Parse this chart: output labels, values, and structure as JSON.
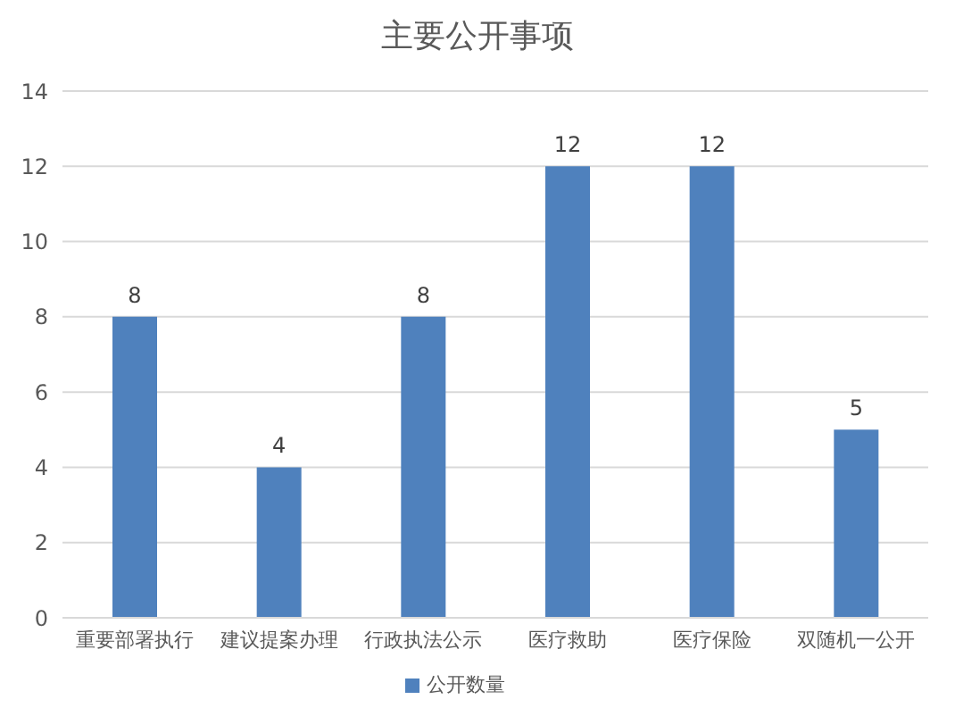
{
  "chart_data": {
    "type": "bar",
    "title": "主要公开事项",
    "categories": [
      "重要部署执行",
      "建议提案办理",
      "行政执法公示",
      "医疗救助",
      "医疗保险",
      "双随机一公开"
    ],
    "series": [
      {
        "name": "公开数量",
        "color": "#4f81bd",
        "values": [
          8,
          4,
          8,
          12,
          12,
          5
        ]
      }
    ],
    "ylim": [
      0,
      14
    ],
    "yticks": [
      0,
      2,
      4,
      6,
      8,
      10,
      12,
      14
    ],
    "grid": "y",
    "legend": "bottom",
    "data_labels": true
  }
}
